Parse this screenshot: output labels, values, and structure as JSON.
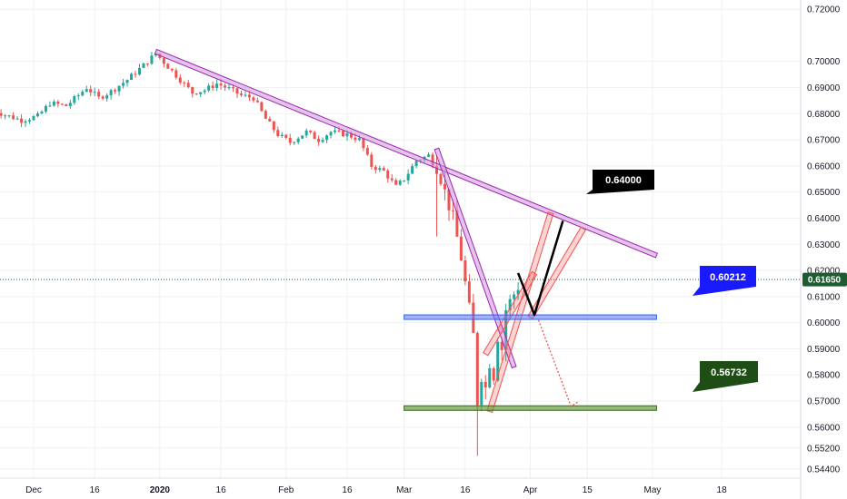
{
  "chart_data": {
    "type": "candlestick",
    "title": "",
    "xlabel": "",
    "ylabel": "",
    "ylim": [
      0.5405,
      0.7235
    ],
    "grid": true,
    "y_ticks": [
      "0.72000",
      "0.70000",
      "0.69000",
      "0.68000",
      "0.67000",
      "0.66000",
      "0.65000",
      "0.64000",
      "0.63000",
      "0.62000",
      "0.61000",
      "0.60000",
      "0.59000",
      "0.58000",
      "0.57000",
      "0.56000",
      "0.55200",
      "0.54400"
    ],
    "x_ticks": [
      {
        "label": "Dec",
        "date": "2019-12-01",
        "bold": false
      },
      {
        "label": "16",
        "date": "2019-12-16",
        "bold": false
      },
      {
        "label": "2020",
        "date": "2020-01-01",
        "bold": true
      },
      {
        "label": "16",
        "date": "2020-01-16",
        "bold": false
      },
      {
        "label": "Feb",
        "date": "2020-02-01",
        "bold": false
      },
      {
        "label": "16",
        "date": "2020-02-16",
        "bold": false
      },
      {
        "label": "Mar",
        "date": "2020-03-01",
        "bold": false
      },
      {
        "label": "16",
        "date": "2020-03-16",
        "bold": false
      },
      {
        "label": "Apr",
        "date": "2020-04-01",
        "bold": false
      },
      {
        "label": "15",
        "date": "2020-04-15",
        "bold": false
      },
      {
        "label": "May",
        "date": "2020-05-01",
        "bold": false
      },
      {
        "label": "18",
        "date": "2020-05-18",
        "bold": false
      }
    ],
    "price_series": [
      {
        "date": "2019-11-20",
        "price": 0.682
      },
      {
        "date": "2019-11-24",
        "price": 0.6795
      },
      {
        "date": "2019-11-28",
        "price": 0.6775
      },
      {
        "date": "2019-12-02",
        "price": 0.679
      },
      {
        "date": "2019-12-05",
        "price": 0.684
      },
      {
        "date": "2019-12-09",
        "price": 0.683
      },
      {
        "date": "2019-12-12",
        "price": 0.687
      },
      {
        "date": "2019-12-14",
        "price": 0.69
      },
      {
        "date": "2019-12-17",
        "price": 0.686
      },
      {
        "date": "2019-12-20",
        "price": 0.6885
      },
      {
        "date": "2019-12-24",
        "price": 0.693
      },
      {
        "date": "2019-12-28",
        "price": 0.6985
      },
      {
        "date": "2019-12-31",
        "price": 0.703
      },
      {
        "date": "2020-01-03",
        "price": 0.698
      },
      {
        "date": "2020-01-06",
        "price": 0.693
      },
      {
        "date": "2020-01-09",
        "price": 0.688
      },
      {
        "date": "2020-01-12",
        "price": 0.689
      },
      {
        "date": "2020-01-15",
        "price": 0.6915
      },
      {
        "date": "2020-01-18",
        "price": 0.6895
      },
      {
        "date": "2020-01-21",
        "price": 0.687
      },
      {
        "date": "2020-01-24",
        "price": 0.686
      },
      {
        "date": "2020-01-27",
        "price": 0.678
      },
      {
        "date": "2020-01-30",
        "price": 0.672
      },
      {
        "date": "2020-02-02",
        "price": 0.669
      },
      {
        "date": "2020-02-06",
        "price": 0.673
      },
      {
        "date": "2020-02-09",
        "price": 0.67
      },
      {
        "date": "2020-02-12",
        "price": 0.673
      },
      {
        "date": "2020-02-16",
        "price": 0.672
      },
      {
        "date": "2020-02-19",
        "price": 0.67
      },
      {
        "date": "2020-02-22",
        "price": 0.66
      },
      {
        "date": "2020-02-25",
        "price": 0.658
      },
      {
        "date": "2020-02-28",
        "price": 0.652
      },
      {
        "date": "2020-03-01",
        "price": 0.655
      },
      {
        "date": "2020-03-04",
        "price": 0.662
      },
      {
        "date": "2020-03-07",
        "price": 0.664
      },
      {
        "date": "2020-03-09",
        "price": 0.658
      },
      {
        "date": "2020-03-11",
        "price": 0.65
      },
      {
        "date": "2020-03-13",
        "price": 0.64
      },
      {
        "date": "2020-03-15",
        "price": 0.625
      },
      {
        "date": "2020-03-16",
        "price": 0.615
      },
      {
        "date": "2020-03-17",
        "price": 0.605
      },
      {
        "date": "2020-03-18",
        "price": 0.595
      },
      {
        "date": "2020-03-19",
        "price": 0.57
      },
      {
        "date": "2020-03-20",
        "price": 0.58
      },
      {
        "date": "2020-03-21",
        "price": 0.575
      },
      {
        "date": "2020-03-22",
        "price": 0.585
      },
      {
        "date": "2020-03-23",
        "price": 0.58
      },
      {
        "date": "2020-03-24",
        "price": 0.595
      },
      {
        "date": "2020-03-25",
        "price": 0.59
      },
      {
        "date": "2020-03-26",
        "price": 0.605
      },
      {
        "date": "2020-03-27",
        "price": 0.608
      },
      {
        "date": "2020-03-29",
        "price": 0.614
      }
    ],
    "current_price": {
      "label": "0.61650",
      "value": 0.6165,
      "color": "#1e5b30"
    },
    "annotations": {
      "target_label": "0.64000",
      "resistance_label": "0.60212",
      "support_label": "0.56732"
    },
    "drawings": {
      "main_trendline": {
        "start": {
          "date": "2019-12-31",
          "price": 0.7038
        },
        "end": {
          "date": "2020-05-02",
          "price": 0.6257
        },
        "color": "#9c27b0"
      },
      "steep_trendline": {
        "start": {
          "date": "2020-03-09",
          "price": 0.6665
        },
        "end": {
          "date": "2020-03-28",
          "price": 0.583
        },
        "color": "#9c27b0"
      },
      "resistance_line": {
        "start_date": "2020-03-01",
        "end_date": "2020-05-02",
        "price": 0.60212,
        "color": "#2962ff"
      },
      "support_line": {
        "start_date": "2020-03-01",
        "end_date": "2020-05-02",
        "price": 0.56732,
        "color": "#33691e"
      },
      "channel_lower_1": {
        "start": {
          "date": "2020-03-22",
          "price": 0.566
        },
        "end": {
          "date": "2020-04-06",
          "price": 0.642
        }
      },
      "channel_upper_1": {
        "start": {
          "date": "2020-03-21",
          "price": 0.588
        },
        "end": {
          "date": "2020-04-02",
          "price": 0.619
        }
      },
      "channel_2": {
        "start": {
          "date": "2020-04-01",
          "price": 0.602
        },
        "end": {
          "date": "2020-04-14",
          "price": 0.636
        }
      },
      "projection_path": [
        {
          "date": "2020-03-29",
          "price": 0.619
        },
        {
          "date": "2020-04-02",
          "price": 0.603
        },
        {
          "date": "2020-04-09",
          "price": 0.639
        }
      ],
      "dotted_projection": [
        {
          "date": "2020-04-03",
          "price": 0.601
        },
        {
          "date": "2020-04-11",
          "price": 0.568
        },
        {
          "date": "2020-04-13",
          "price": 0.57
        }
      ]
    },
    "colors": {
      "up": "#26a69a",
      "down": "#ef5350",
      "trend": "#9c27b0",
      "channel": "#ef5350",
      "grid": "#eef0f3",
      "axis_text": "#131722"
    }
  }
}
